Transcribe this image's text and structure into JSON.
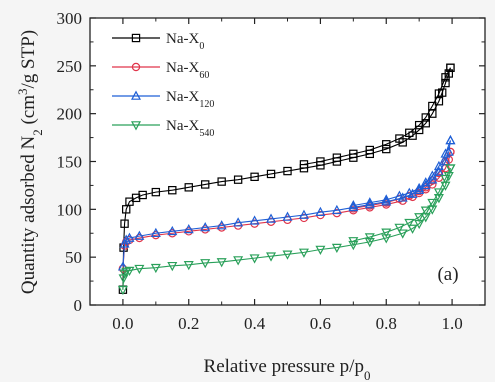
{
  "chart_data": {
    "type": "scatter",
    "title": "",
    "xlabel": "Relative pressure p/p0",
    "ylabel": "Quantity adsorbed N2 (cm3/g STP)",
    "xlim": [
      -0.1,
      1.1
    ],
    "ylim": [
      0,
      300
    ],
    "x_ticks": [
      "0.0",
      "0.2",
      "0.4",
      "0.6",
      "0.8",
      "1.0"
    ],
    "y_ticks": [
      "0",
      "50",
      "100",
      "150",
      "200",
      "250",
      "300"
    ],
    "grid": false,
    "legend_position": "top-left",
    "panel_label": "(a)",
    "series": [
      {
        "name": "Na-X0",
        "label_main": "Na-X",
        "label_sub": "0",
        "color": "#000000",
        "marker": "square",
        "adsorption": [
          [
            0.0,
            16
          ],
          [
            0.002,
            60
          ],
          [
            0.005,
            85
          ],
          [
            0.01,
            100
          ],
          [
            0.02,
            108
          ],
          [
            0.04,
            112
          ],
          [
            0.06,
            115
          ],
          [
            0.1,
            118
          ],
          [
            0.15,
            120
          ],
          [
            0.2,
            123
          ],
          [
            0.25,
            126
          ],
          [
            0.3,
            129
          ],
          [
            0.35,
            131
          ],
          [
            0.4,
            134
          ],
          [
            0.45,
            137
          ],
          [
            0.5,
            140
          ],
          [
            0.55,
            143
          ],
          [
            0.6,
            146
          ],
          [
            0.65,
            150
          ],
          [
            0.7,
            154
          ],
          [
            0.75,
            158
          ],
          [
            0.8,
            163
          ],
          [
            0.85,
            170
          ],
          [
            0.88,
            177
          ],
          [
            0.9,
            183
          ],
          [
            0.92,
            190
          ],
          [
            0.94,
            200
          ],
          [
            0.96,
            213
          ],
          [
            0.97,
            222
          ],
          [
            0.98,
            232
          ],
          [
            0.99,
            242
          ],
          [
            0.995,
            248
          ]
        ],
        "desorption": [
          [
            0.995,
            248
          ],
          [
            0.98,
            238
          ],
          [
            0.96,
            221
          ],
          [
            0.94,
            208
          ],
          [
            0.92,
            196
          ],
          [
            0.9,
            188
          ],
          [
            0.87,
            180
          ],
          [
            0.84,
            174
          ],
          [
            0.8,
            168
          ],
          [
            0.75,
            162
          ],
          [
            0.7,
            158
          ],
          [
            0.65,
            154
          ],
          [
            0.6,
            150
          ],
          [
            0.55,
            147
          ]
        ]
      },
      {
        "name": "Na-X60",
        "label_main": "Na-X",
        "label_sub": "60",
        "color": "#e0344a",
        "marker": "circle",
        "adsorption": [
          [
            0.0,
            38
          ],
          [
            0.005,
            62
          ],
          [
            0.01,
            66
          ],
          [
            0.02,
            68
          ],
          [
            0.05,
            70
          ],
          [
            0.1,
            73
          ],
          [
            0.15,
            75
          ],
          [
            0.2,
            77
          ],
          [
            0.25,
            79
          ],
          [
            0.3,
            81
          ],
          [
            0.35,
            83
          ],
          [
            0.4,
            85
          ],
          [
            0.45,
            87
          ],
          [
            0.5,
            89
          ],
          [
            0.55,
            91
          ],
          [
            0.6,
            94
          ],
          [
            0.65,
            96
          ],
          [
            0.7,
            99
          ],
          [
            0.75,
            102
          ],
          [
            0.8,
            105
          ],
          [
            0.85,
            109
          ],
          [
            0.88,
            113
          ],
          [
            0.9,
            117
          ],
          [
            0.92,
            121
          ],
          [
            0.94,
            126
          ],
          [
            0.96,
            133
          ],
          [
            0.98,
            143
          ],
          [
            0.99,
            152
          ],
          [
            0.995,
            160
          ]
        ],
        "desorption": [
          [
            0.995,
            160
          ],
          [
            0.98,
            150
          ],
          [
            0.96,
            138
          ],
          [
            0.94,
            130
          ],
          [
            0.92,
            123
          ],
          [
            0.9,
            119
          ],
          [
            0.87,
            114
          ],
          [
            0.84,
            111
          ],
          [
            0.8,
            107
          ],
          [
            0.75,
            104
          ],
          [
            0.7,
            101
          ]
        ]
      },
      {
        "name": "Na-X120",
        "label_main": "Na-X",
        "label_sub": "120",
        "color": "#1f5fd6",
        "marker": "triangle-up",
        "adsorption": [
          [
            0.0,
            40
          ],
          [
            0.005,
            64
          ],
          [
            0.01,
            68
          ],
          [
            0.02,
            70
          ],
          [
            0.05,
            72
          ],
          [
            0.1,
            75
          ],
          [
            0.15,
            77
          ],
          [
            0.2,
            79
          ],
          [
            0.25,
            81
          ],
          [
            0.3,
            83
          ],
          [
            0.35,
            86
          ],
          [
            0.4,
            88
          ],
          [
            0.45,
            90
          ],
          [
            0.5,
            92
          ],
          [
            0.55,
            94
          ],
          [
            0.6,
            97
          ],
          [
            0.65,
            99
          ],
          [
            0.7,
            102
          ],
          [
            0.75,
            105
          ],
          [
            0.8,
            108
          ],
          [
            0.85,
            112
          ],
          [
            0.88,
            116
          ],
          [
            0.9,
            120
          ],
          [
            0.92,
            125
          ],
          [
            0.94,
            131
          ],
          [
            0.96,
            139
          ],
          [
            0.98,
            150
          ],
          [
            0.99,
            160
          ],
          [
            0.995,
            172
          ]
        ],
        "desorption": [
          [
            0.995,
            172
          ],
          [
            0.98,
            158
          ],
          [
            0.96,
            145
          ],
          [
            0.94,
            135
          ],
          [
            0.92,
            128
          ],
          [
            0.9,
            122
          ],
          [
            0.87,
            117
          ],
          [
            0.84,
            114
          ],
          [
            0.8,
            110
          ],
          [
            0.75,
            107
          ],
          [
            0.7,
            104
          ]
        ]
      },
      {
        "name": "Na-X540",
        "label_main": "Na-X",
        "label_sub": "540",
        "color": "#2aa05a",
        "marker": "triangle-down",
        "adsorption": [
          [
            0.0,
            16
          ],
          [
            0.002,
            28
          ],
          [
            0.005,
            33
          ],
          [
            0.01,
            35
          ],
          [
            0.02,
            36
          ],
          [
            0.05,
            38
          ],
          [
            0.1,
            39
          ],
          [
            0.15,
            41
          ],
          [
            0.2,
            42
          ],
          [
            0.25,
            44
          ],
          [
            0.3,
            45
          ],
          [
            0.35,
            47
          ],
          [
            0.4,
            49
          ],
          [
            0.45,
            51
          ],
          [
            0.5,
            53
          ],
          [
            0.55,
            55
          ],
          [
            0.6,
            58
          ],
          [
            0.65,
            60
          ],
          [
            0.7,
            63
          ],
          [
            0.75,
            66
          ],
          [
            0.8,
            70
          ],
          [
            0.85,
            75
          ],
          [
            0.88,
            80
          ],
          [
            0.9,
            85
          ],
          [
            0.92,
            92
          ],
          [
            0.94,
            100
          ],
          [
            0.96,
            112
          ],
          [
            0.98,
            125
          ],
          [
            0.99,
            135
          ],
          [
            0.995,
            143
          ]
        ],
        "desorption": [
          [
            0.995,
            143
          ],
          [
            0.98,
            132
          ],
          [
            0.96,
            118
          ],
          [
            0.94,
            107
          ],
          [
            0.92,
            99
          ],
          [
            0.9,
            92
          ],
          [
            0.87,
            86
          ],
          [
            0.84,
            81
          ],
          [
            0.8,
            76
          ],
          [
            0.75,
            71
          ],
          [
            0.7,
            67
          ]
        ]
      }
    ]
  }
}
